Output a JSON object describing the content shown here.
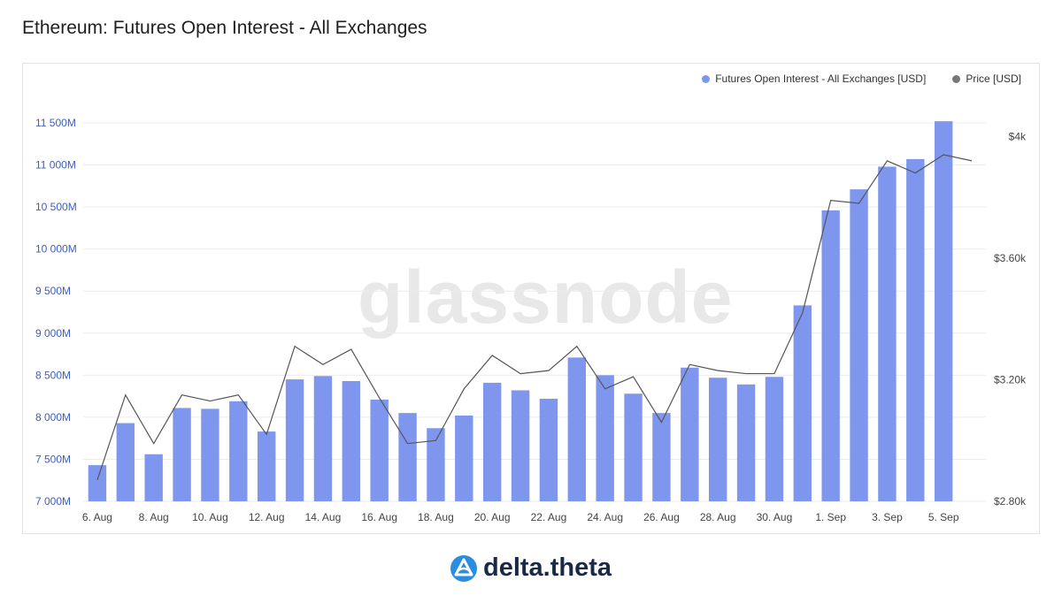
{
  "title": "Ethereum: Futures Open Interest - All Exchanges",
  "watermark": "glassnode",
  "brand": "delta.theta",
  "colors": {
    "bar": "#7f96ee",
    "price_line": "#555555",
    "left_axis_text": "#3c5cc6",
    "right_axis_text": "#444444",
    "grid": "#ececec",
    "brand_blue": "#2a8de0",
    "brand_text": "#1a2a45"
  },
  "chart_data": {
    "type": "bar",
    "title": "Ethereum: Futures Open Interest - All Exchanges",
    "x_tick_labels": [
      "6. Aug",
      "8. Aug",
      "10. Aug",
      "12. Aug",
      "14. Aug",
      "16. Aug",
      "18. Aug",
      "20. Aug",
      "22. Aug",
      "24. Aug",
      "26. Aug",
      "28. Aug",
      "30. Aug",
      "1. Sep",
      "3. Sep",
      "5. Sep"
    ],
    "categories": [
      "6. Aug",
      "7. Aug",
      "8. Aug",
      "9. Aug",
      "10. Aug",
      "11. Aug",
      "12. Aug",
      "13. Aug",
      "14. Aug",
      "15. Aug",
      "16. Aug",
      "17. Aug",
      "18. Aug",
      "19. Aug",
      "20. Aug",
      "21. Aug",
      "22. Aug",
      "23. Aug",
      "24. Aug",
      "25. Aug",
      "26. Aug",
      "27. Aug",
      "28. Aug",
      "29. Aug",
      "30. Aug",
      "31. Aug",
      "1. Sep",
      "2. Sep",
      "3. Sep",
      "4. Sep",
      "5. Sep",
      "6. Sep"
    ],
    "y_left": {
      "ylim": [
        7000,
        11700
      ],
      "ticks": [
        7000,
        7500,
        8000,
        8500,
        9000,
        9500,
        10000,
        10500,
        11000,
        11500
      ],
      "tick_labels": [
        "7 000M",
        "7 500M",
        "8 000M",
        "8 500M",
        "9 000M",
        "9 500M",
        "10 000M",
        "10 500M",
        "11 000M",
        "11 500M"
      ]
    },
    "y_right": {
      "ylim": [
        2800,
        4100
      ],
      "ticks": [
        2800,
        3200,
        3600,
        4000
      ],
      "tick_labels": [
        "$2.80k",
        "$3.20k",
        "$3.60k",
        "$4k"
      ]
    },
    "series": [
      {
        "name": "Futures Open Interest - All Exchanges [USD]",
        "type": "bar",
        "axis": "left",
        "values": [
          7430,
          7930,
          7560,
          8110,
          8100,
          8190,
          7830,
          8450,
          8490,
          8430,
          8210,
          8050,
          7870,
          8020,
          8410,
          8320,
          8220,
          8710,
          8500,
          8280,
          8050,
          8590,
          8470,
          8390,
          8480,
          9330,
          10460,
          10710,
          10980,
          11070,
          11520,
          null
        ]
      },
      {
        "name": "Price [USD]",
        "type": "line",
        "axis": "right",
        "values": [
          2870,
          3150,
          2990,
          3150,
          3130,
          3150,
          3020,
          3310,
          3250,
          3300,
          3140,
          2990,
          3000,
          3170,
          3280,
          3220,
          3230,
          3310,
          3170,
          3210,
          3060,
          3250,
          3230,
          3220,
          3220,
          3420,
          3790,
          3780,
          3920,
          3880,
          3940,
          3920
        ]
      }
    ],
    "legend": "top-right",
    "grid": true
  }
}
